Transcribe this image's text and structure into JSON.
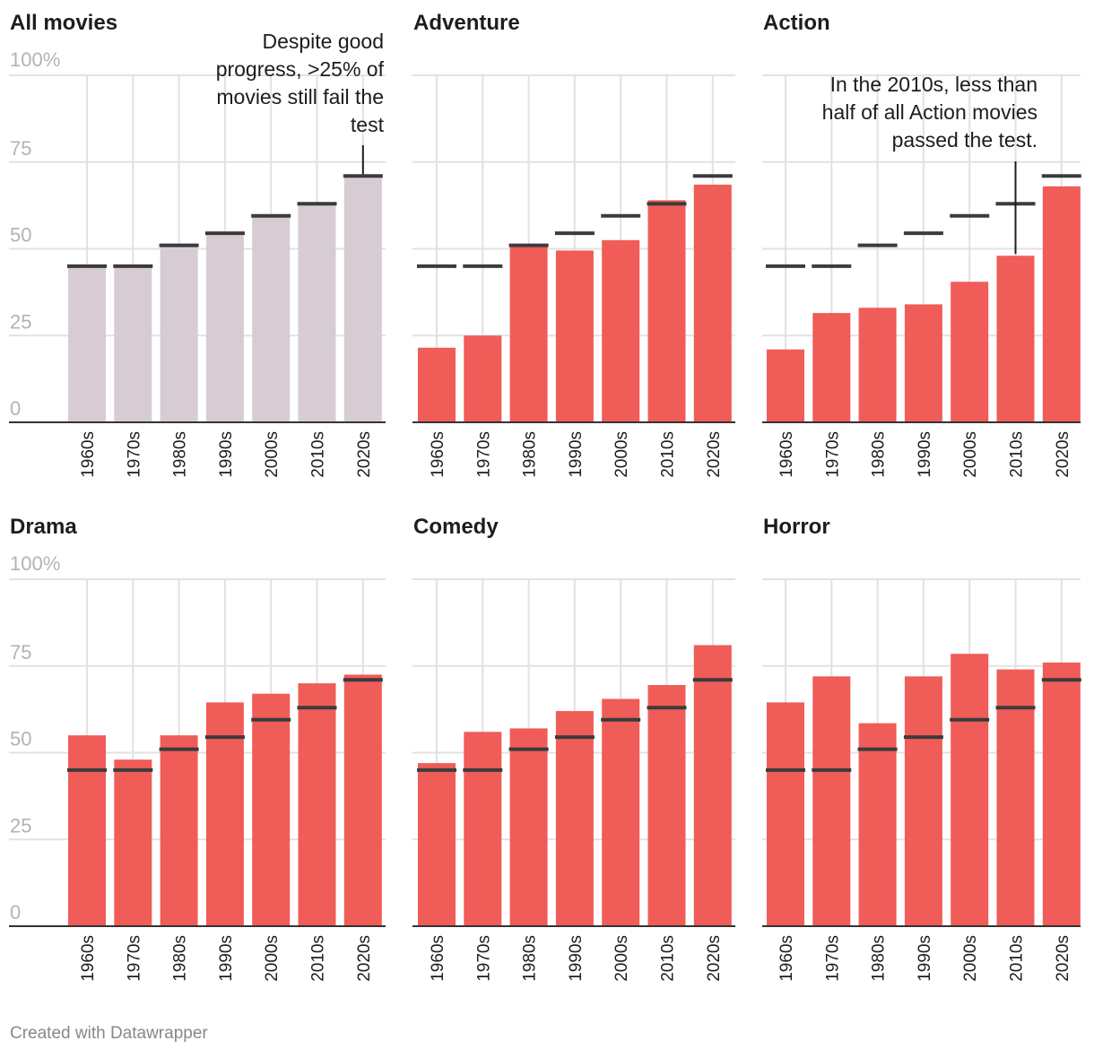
{
  "chart_data": {
    "type": "bar",
    "y_axis_unit_label": "100%",
    "ylim": [
      0,
      100
    ],
    "yticks": [
      0,
      25,
      50,
      75
    ],
    "categories": [
      "1960s",
      "1970s",
      "1980s",
      "1990s",
      "2000s",
      "2010s",
      "2020s"
    ],
    "reference_series_name": "All movies",
    "reference_values": [
      45,
      45,
      51,
      54.5,
      59.5,
      63,
      71
    ],
    "colors": {
      "all": "#d7ccd4",
      "genre": "#f05c58",
      "marker": "#3b3b3b",
      "grid": "#e2e2e2",
      "axis_text": "#b3b3b3"
    },
    "panels": [
      {
        "title": "All movies",
        "values": [
          45,
          45,
          51,
          54.5,
          59.5,
          63,
          71
        ],
        "style": "all",
        "annotation": {
          "lines": [
            "Despite good",
            "progress, >25% of",
            "movies still fail the",
            "test"
          ],
          "category": "2020s"
        }
      },
      {
        "title": "Adventure",
        "values": [
          21.5,
          25,
          51,
          49.5,
          52.5,
          64,
          68.5
        ],
        "style": "genre"
      },
      {
        "title": "Action",
        "values": [
          21,
          31.5,
          33,
          34,
          40.5,
          48,
          68
        ],
        "style": "genre",
        "annotation": {
          "lines": [
            "In the 2010s, less than",
            "half of all Action movies",
            "passed the test."
          ],
          "category": "2010s"
        }
      },
      {
        "title": "Drama",
        "values": [
          55,
          48,
          55,
          64.5,
          67,
          70,
          72.5
        ],
        "style": "genre"
      },
      {
        "title": "Comedy",
        "values": [
          47,
          56,
          57,
          62,
          65.5,
          69.5,
          81
        ],
        "style": "genre"
      },
      {
        "title": "Horror",
        "values": [
          64.5,
          72,
          58.5,
          72,
          78.5,
          74,
          76
        ],
        "style": "genre"
      }
    ]
  },
  "footer": {
    "credit": "Created with Datawrapper"
  }
}
